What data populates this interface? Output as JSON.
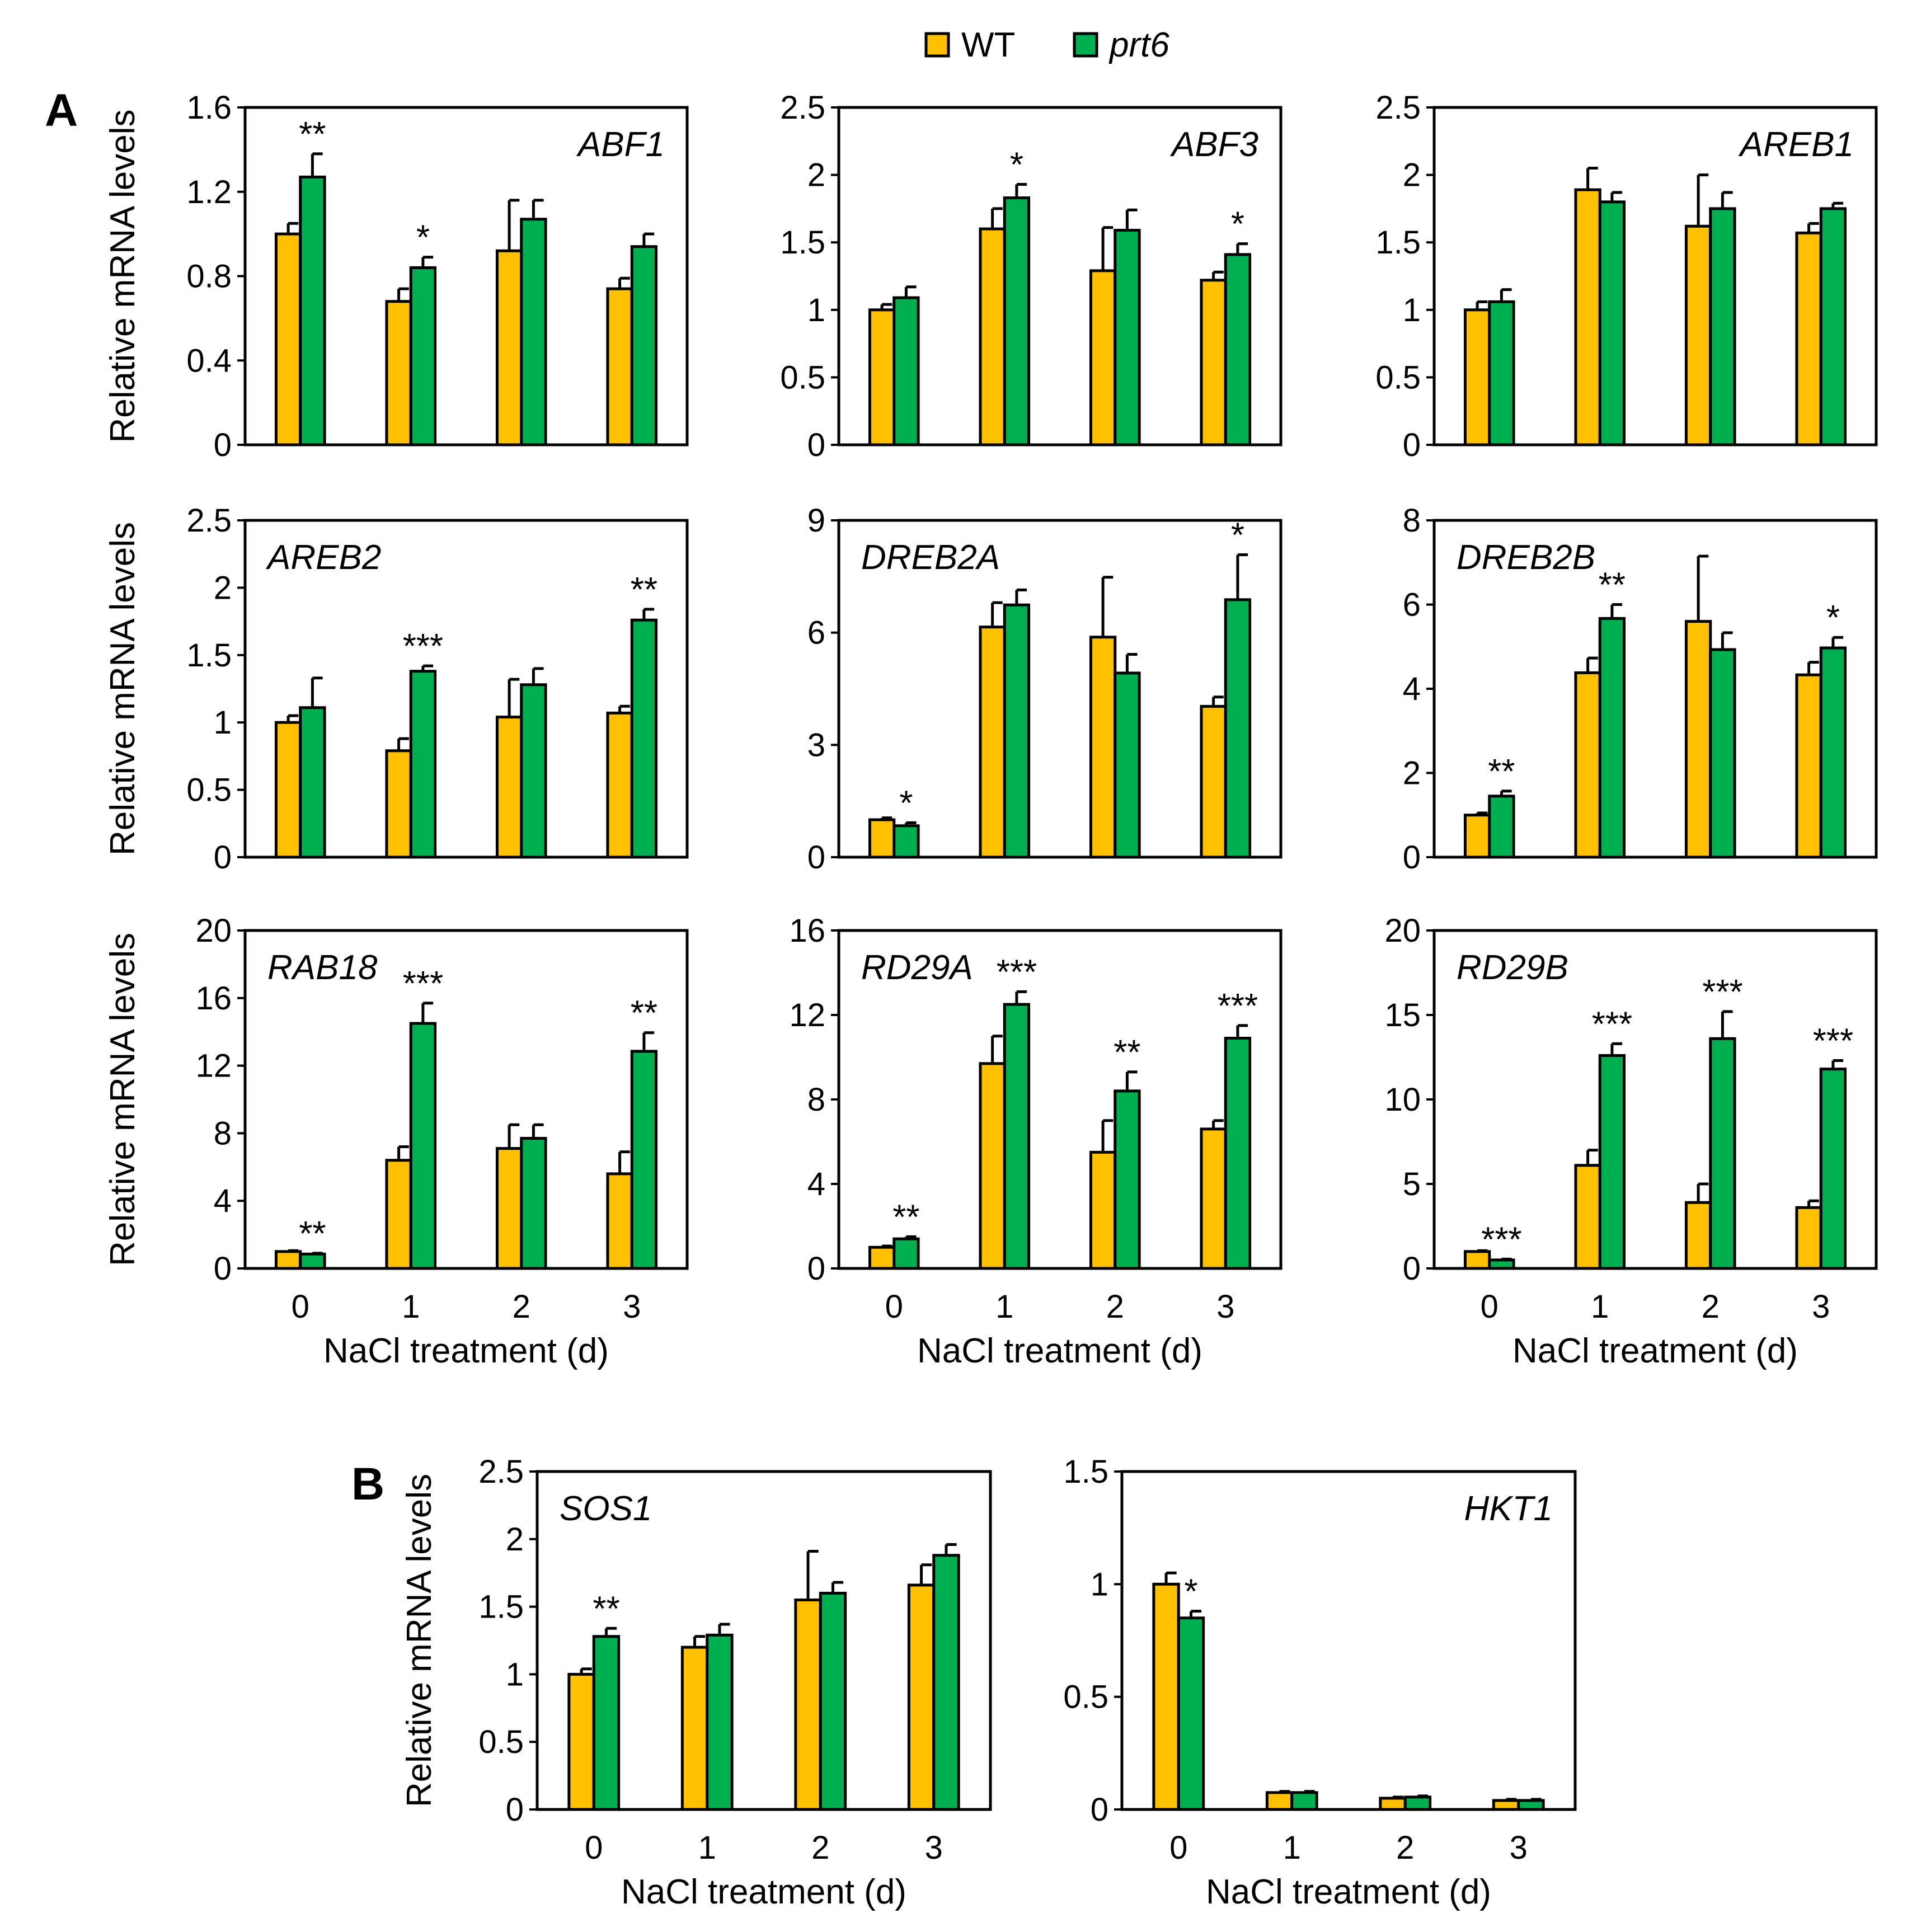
{
  "legend": {
    "items": [
      {
        "label": "WT",
        "color": "#FFC000"
      },
      {
        "label": "prt6",
        "color": "#00B050"
      }
    ]
  },
  "panel_labels": [
    "A",
    "B"
  ],
  "colors": {
    "wt": "#FFC000",
    "prt6": "#00B050",
    "stroke": "#000000"
  },
  "common": {
    "ylabel": "Relative mRNA levels",
    "xlabel": "NaCl treatment (d)",
    "categories": [
      "0",
      "1",
      "2",
      "3"
    ]
  },
  "chart_data": [
    {
      "type": "bar",
      "title": "ABF1",
      "title_pos": "right",
      "categories": [
        "0",
        "1",
        "2",
        "3"
      ],
      "series": [
        {
          "name": "WT",
          "values": [
            1.0,
            0.68,
            0.92,
            0.74
          ],
          "errors": [
            0.05,
            0.06,
            0.24,
            0.05
          ]
        },
        {
          "name": "prt6",
          "values": [
            1.27,
            0.84,
            1.07,
            0.94
          ],
          "errors": [
            0.11,
            0.05,
            0.09,
            0.06
          ]
        }
      ],
      "significance": [
        [
          "",
          "**"
        ],
        [
          "",
          "*"
        ],
        [
          "",
          ""
        ],
        [
          "",
          ""
        ]
      ],
      "ylim": [
        0,
        1.6
      ],
      "yticks": [
        "0",
        "0.4",
        "0.8",
        "1.2",
        "1.6"
      ],
      "ylabel": "Relative mRNA levels",
      "xlabel": ""
    },
    {
      "type": "bar",
      "title": "ABF3",
      "title_pos": "right",
      "categories": [
        "0",
        "1",
        "2",
        "3"
      ],
      "series": [
        {
          "name": "WT",
          "values": [
            1.0,
            1.6,
            1.29,
            1.22
          ],
          "errors": [
            0.04,
            0.15,
            0.32,
            0.06
          ]
        },
        {
          "name": "prt6",
          "values": [
            1.09,
            1.83,
            1.59,
            1.41
          ],
          "errors": [
            0.08,
            0.1,
            0.15,
            0.08
          ]
        }
      ],
      "significance": [
        [
          "",
          ""
        ],
        [
          "",
          "*"
        ],
        [
          "",
          ""
        ],
        [
          "",
          "*"
        ]
      ],
      "ylim": [
        0,
        2.5
      ],
      "yticks": [
        "0",
        "0.5",
        "1",
        "1.5",
        "2",
        "2.5"
      ],
      "ylabel": "",
      "xlabel": ""
    },
    {
      "type": "bar",
      "title": "AREB1",
      "title_pos": "right",
      "categories": [
        "0",
        "1",
        "2",
        "3"
      ],
      "series": [
        {
          "name": "WT",
          "values": [
            1.0,
            1.89,
            1.62,
            1.57
          ],
          "errors": [
            0.06,
            0.16,
            0.38,
            0.07
          ]
        },
        {
          "name": "prt6",
          "values": [
            1.06,
            1.8,
            1.75,
            1.75
          ],
          "errors": [
            0.09,
            0.07,
            0.12,
            0.04
          ]
        }
      ],
      "significance": [
        [
          "",
          ""
        ],
        [
          "",
          ""
        ],
        [
          "",
          ""
        ],
        [
          "",
          ""
        ]
      ],
      "ylim": [
        0,
        2.5
      ],
      "yticks": [
        "0",
        "0.5",
        "1",
        "1.5",
        "2",
        "2.5"
      ],
      "ylabel": "",
      "xlabel": ""
    },
    {
      "type": "bar",
      "title": "AREB2",
      "title_pos": "left",
      "categories": [
        "0",
        "1",
        "2",
        "3"
      ],
      "series": [
        {
          "name": "WT",
          "values": [
            1.0,
            0.79,
            1.04,
            1.07
          ],
          "errors": [
            0.05,
            0.09,
            0.28,
            0.05
          ]
        },
        {
          "name": "prt6",
          "values": [
            1.11,
            1.38,
            1.28,
            1.76
          ],
          "errors": [
            0.22,
            0.04,
            0.12,
            0.08
          ]
        }
      ],
      "significance": [
        [
          "",
          ""
        ],
        [
          "",
          "***"
        ],
        [
          "",
          ""
        ],
        [
          "",
          "**"
        ]
      ],
      "ylim": [
        0,
        2.5
      ],
      "yticks": [
        "0",
        "0.5",
        "1",
        "1.5",
        "2",
        "2.5"
      ],
      "ylabel": "Relative mRNA levels",
      "xlabel": ""
    },
    {
      "type": "bar",
      "title": "DREB2A",
      "title_pos": "left",
      "categories": [
        "0",
        "1",
        "2",
        "3"
      ],
      "series": [
        {
          "name": "WT",
          "values": [
            1.0,
            6.15,
            5.88,
            4.03
          ],
          "errors": [
            0.05,
            0.65,
            1.6,
            0.25
          ]
        },
        {
          "name": "prt6",
          "values": [
            0.84,
            6.74,
            4.92,
            6.88
          ],
          "errors": [
            0.08,
            0.4,
            0.5,
            1.2
          ]
        }
      ],
      "significance": [
        [
          "",
          "*"
        ],
        [
          "",
          ""
        ],
        [
          "",
          ""
        ],
        [
          "",
          "*"
        ]
      ],
      "ylim": [
        0,
        9
      ],
      "yticks": [
        "0",
        "3",
        "6",
        "9"
      ],
      "ylabel": "",
      "xlabel": ""
    },
    {
      "type": "bar",
      "title": "DREB2B",
      "title_pos": "left",
      "categories": [
        "0",
        "1",
        "2",
        "3"
      ],
      "series": [
        {
          "name": "WT",
          "values": [
            1.0,
            4.38,
            5.6,
            4.33
          ],
          "errors": [
            0.05,
            0.35,
            1.55,
            0.3
          ]
        },
        {
          "name": "prt6",
          "values": [
            1.45,
            5.67,
            4.93,
            4.97
          ],
          "errors": [
            0.12,
            0.33,
            0.4,
            0.25
          ]
        }
      ],
      "significance": [
        [
          "",
          "**"
        ],
        [
          "",
          "**"
        ],
        [
          "",
          ""
        ],
        [
          "",
          "*"
        ]
      ],
      "ylim": [
        0,
        8
      ],
      "yticks": [
        "0",
        "2",
        "4",
        "6",
        "8"
      ],
      "ylabel": "",
      "xlabel": ""
    },
    {
      "type": "bar",
      "title": "RAB18",
      "title_pos": "left",
      "categories": [
        "0",
        "1",
        "2",
        "3"
      ],
      "series": [
        {
          "name": "WT",
          "values": [
            1.0,
            6.4,
            7.1,
            5.6
          ],
          "errors": [
            0.05,
            0.8,
            1.4,
            1.3
          ]
        },
        {
          "name": "prt6",
          "values": [
            0.85,
            14.5,
            7.7,
            12.85
          ],
          "errors": [
            0.05,
            1.2,
            0.8,
            1.1
          ]
        }
      ],
      "significance": [
        [
          "",
          "**"
        ],
        [
          "",
          "***"
        ],
        [
          "",
          ""
        ],
        [
          "",
          "**"
        ]
      ],
      "ylim": [
        0,
        20
      ],
      "yticks": [
        "0",
        "4",
        "8",
        "12",
        "16",
        "20"
      ],
      "ylabel": "Relative mRNA levels",
      "xlabel": "NaCl treatment (d)"
    },
    {
      "type": "bar",
      "title": "RD29A",
      "title_pos": "left",
      "categories": [
        "0",
        "1",
        "2",
        "3"
      ],
      "series": [
        {
          "name": "WT",
          "values": [
            1.0,
            9.7,
            5.5,
            6.6
          ],
          "errors": [
            0.06,
            1.3,
            1.5,
            0.4
          ]
        },
        {
          "name": "prt6",
          "values": [
            1.4,
            12.5,
            8.4,
            10.9
          ],
          "errors": [
            0.1,
            0.6,
            0.9,
            0.6
          ]
        }
      ],
      "significance": [
        [
          "",
          "**"
        ],
        [
          "",
          "***"
        ],
        [
          "",
          "**"
        ],
        [
          "",
          "***"
        ]
      ],
      "ylim": [
        0,
        16
      ],
      "yticks": [
        "0",
        "4",
        "8",
        "12",
        "16"
      ],
      "ylabel": "",
      "xlabel": "NaCl treatment (d)"
    },
    {
      "type": "bar",
      "title": "RD29B",
      "title_pos": "left",
      "categories": [
        "0",
        "1",
        "2",
        "3"
      ],
      "series": [
        {
          "name": "WT",
          "values": [
            1.0,
            6.1,
            3.9,
            3.6
          ],
          "errors": [
            0.05,
            0.9,
            1.1,
            0.4
          ]
        },
        {
          "name": "prt6",
          "values": [
            0.5,
            12.6,
            13.6,
            11.8
          ],
          "errors": [
            0.05,
            0.7,
            1.6,
            0.5
          ]
        }
      ],
      "significance": [
        [
          "",
          "***"
        ],
        [
          "",
          "***"
        ],
        [
          "",
          "***"
        ],
        [
          "",
          "***"
        ]
      ],
      "ylim": [
        0,
        20
      ],
      "yticks": [
        "0",
        "5",
        "10",
        "15",
        "20"
      ],
      "ylabel": "",
      "xlabel": "NaCl treatment (d)"
    },
    {
      "type": "bar",
      "title": "SOS1",
      "title_pos": "left",
      "categories": [
        "0",
        "1",
        "2",
        "3"
      ],
      "series": [
        {
          "name": "WT",
          "values": [
            1.0,
            1.2,
            1.55,
            1.66
          ],
          "errors": [
            0.04,
            0.08,
            0.36,
            0.15
          ]
        },
        {
          "name": "prt6",
          "values": [
            1.28,
            1.29,
            1.6,
            1.88
          ],
          "errors": [
            0.06,
            0.08,
            0.08,
            0.08
          ]
        }
      ],
      "significance": [
        [
          "",
          "**"
        ],
        [
          "",
          ""
        ],
        [
          "",
          ""
        ],
        [
          "",
          ""
        ]
      ],
      "ylim": [
        0,
        2.5
      ],
      "yticks": [
        "0",
        "0.5",
        "1",
        "1.5",
        "2",
        "2.5"
      ],
      "ylabel": "Relative mRNA levels",
      "xlabel": "NaCl treatment (d)"
    },
    {
      "type": "bar",
      "title": "HKT1",
      "title_pos": "right",
      "categories": [
        "0",
        "1",
        "2",
        "3"
      ],
      "series": [
        {
          "name": "WT",
          "values": [
            1.0,
            0.075,
            0.05,
            0.04
          ],
          "errors": [
            0.05,
            0.005,
            0.005,
            0.005
          ]
        },
        {
          "name": "prt6",
          "values": [
            0.85,
            0.075,
            0.055,
            0.04
          ],
          "errors": [
            0.03,
            0.005,
            0.005,
            0.005
          ]
        }
      ],
      "significance": [
        [
          "",
          "*"
        ],
        [
          "",
          ""
        ],
        [
          "",
          ""
        ],
        [
          "",
          ""
        ]
      ],
      "ylim": [
        0,
        1.5
      ],
      "yticks": [
        "0",
        "0.5",
        "1",
        "1.5"
      ],
      "ylabel": "",
      "xlabel": "NaCl treatment (d)"
    }
  ]
}
